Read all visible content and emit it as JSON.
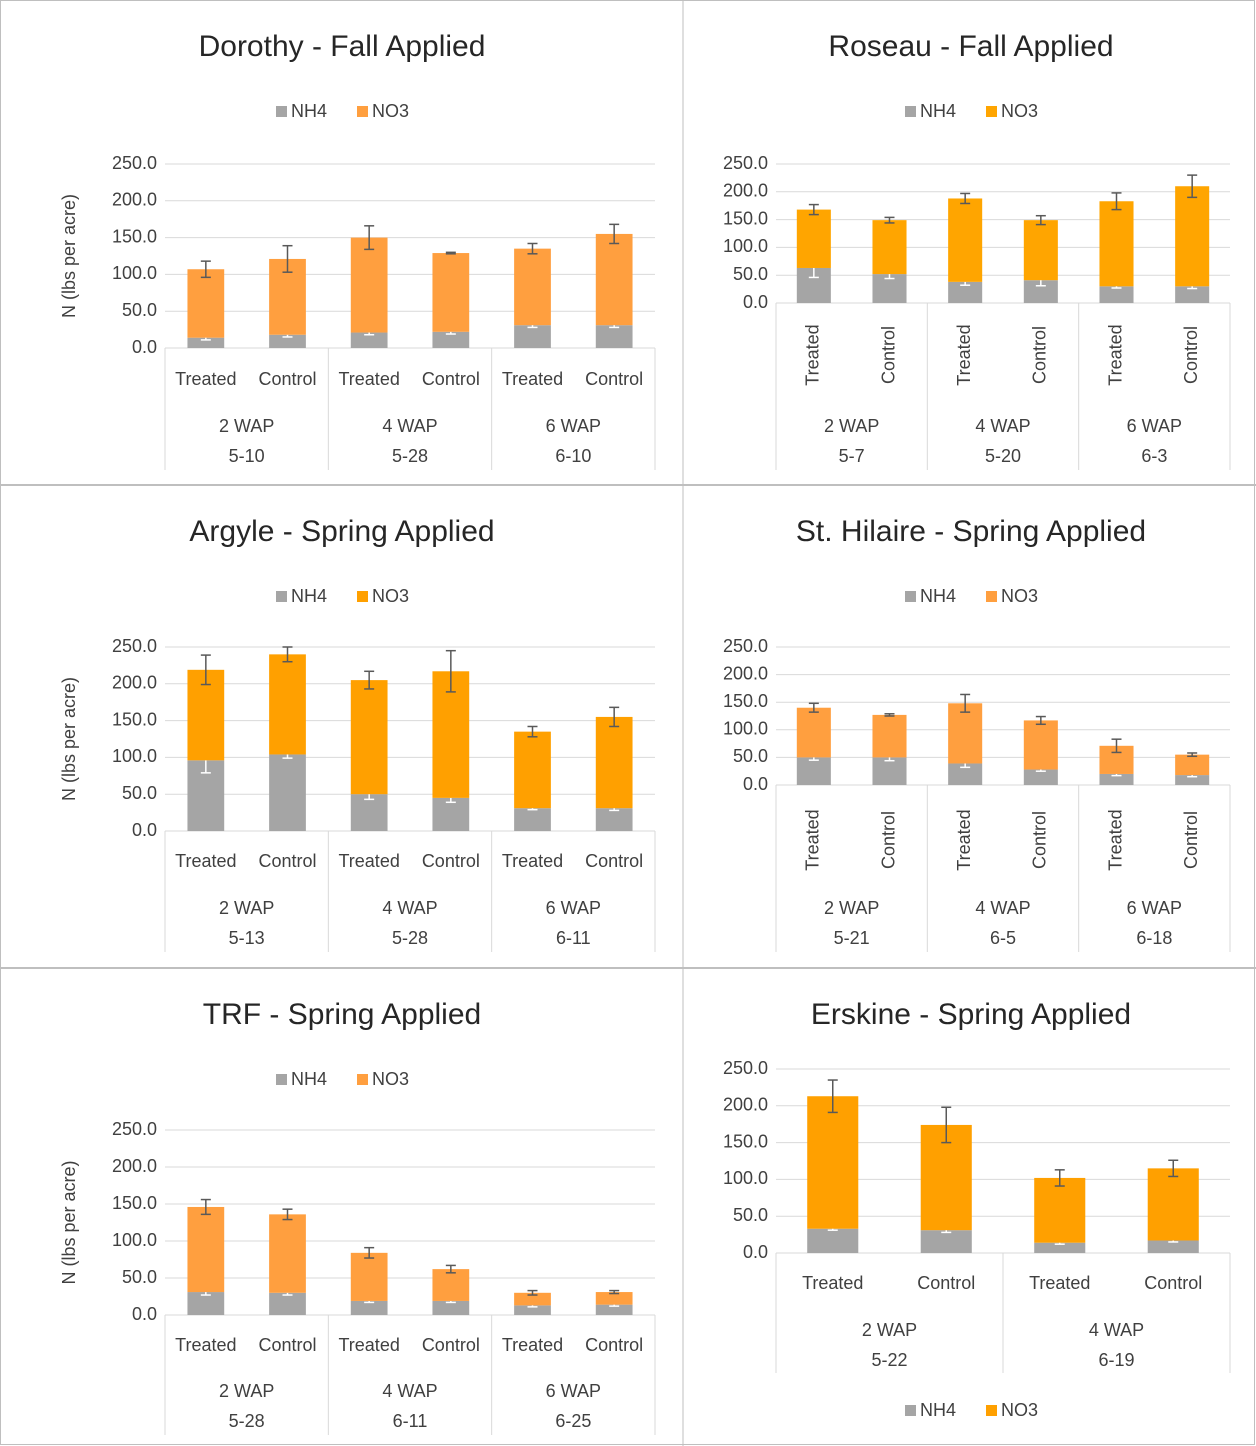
{
  "chart_data": [
    {
      "type": "bar",
      "stacked": true,
      "title": "Dorothy - Fall Applied",
      "ylabel": "N (lbs per acre)",
      "legend": "top",
      "categories": [
        "Treated",
        "Control",
        "Treated",
        "Control",
        "Treated",
        "Control"
      ],
      "groups": [
        [
          "2 WAP",
          "5-10"
        ],
        [
          "4 WAP",
          "5-28"
        ],
        [
          "6 WAP",
          "6-10"
        ]
      ],
      "ylim": [
        0,
        250
      ],
      "yticks": [
        {
          "value": 0,
          "label": "0.0"
        },
        {
          "value": 50,
          "label": "50.0"
        },
        {
          "value": 100,
          "label": "100.0"
        },
        {
          "value": 150,
          "label": "150.0"
        },
        {
          "value": 200,
          "label": "200.0"
        },
        {
          "value": 250,
          "label": "250.0"
        }
      ],
      "grid": true,
      "series": [
        {
          "name": "NH4",
          "color": "#a5a5a5",
          "values": [
            14,
            18,
            21,
            22,
            31,
            31
          ],
          "errors": [
            3,
            3,
            3,
            3,
            3,
            3
          ]
        },
        {
          "name": "NO3",
          "color": "#ff9f3f",
          "values": [
            93,
            103,
            129,
            107,
            104,
            124
          ],
          "errors": [
            11,
            18,
            16,
            1,
            7,
            13
          ]
        }
      ]
    },
    {
      "type": "bar",
      "stacked": true,
      "title": "Roseau - Fall Applied",
      "legend": "top",
      "categories": [
        "Treated",
        "Control",
        "Treated",
        "Control",
        "Treated",
        "Control"
      ],
      "groups": [
        [
          "2 WAP",
          "5-7"
        ],
        [
          "4 WAP",
          "5-20"
        ],
        [
          "6 WAP",
          "6-3"
        ]
      ],
      "ylim": [
        0,
        250
      ],
      "yticks": [
        {
          "value": 0,
          "label": "0.0"
        },
        {
          "value": 50,
          "label": "50.0"
        },
        {
          "value": 100,
          "label": "100.0"
        },
        {
          "value": 150,
          "label": "150.0"
        },
        {
          "value": 200,
          "label": "200.0"
        },
        {
          "value": 250,
          "label": "250.0"
        }
      ],
      "grid": true,
      "series": [
        {
          "name": "NH4",
          "color": "#a5a5a5",
          "values": [
            63,
            52,
            38,
            41,
            30,
            30
          ],
          "errors": [
            17,
            8,
            6,
            10,
            3,
            4
          ]
        },
        {
          "name": "NO3",
          "color": "#ffa500",
          "values": [
            105,
            97,
            150,
            108,
            153,
            180
          ],
          "errors": [
            9,
            5,
            9,
            8,
            15,
            20
          ]
        }
      ]
    },
    {
      "type": "bar",
      "stacked": true,
      "title": "Argyle - Spring Applied",
      "ylabel": "N (lbs per acre)",
      "legend": "top",
      "categories": [
        "Treated",
        "Control",
        "Treated",
        "Control",
        "Treated",
        "Control"
      ],
      "groups": [
        [
          "2 WAP",
          "5-13"
        ],
        [
          "4 WAP",
          "5-28"
        ],
        [
          "6 WAP",
          "6-11"
        ]
      ],
      "ylim": [
        0,
        250
      ],
      "yticks": [
        {
          "value": 0,
          "label": "0.0"
        },
        {
          "value": 50,
          "label": "50.0"
        },
        {
          "value": 100,
          "label": "100.0"
        },
        {
          "value": 150,
          "label": "150.0"
        },
        {
          "value": 200,
          "label": "200.0"
        },
        {
          "value": 250,
          "label": "250.0"
        }
      ],
      "grid": true,
      "series": [
        {
          "name": "NH4",
          "color": "#a5a5a5",
          "values": [
            96,
            104,
            50,
            45,
            31,
            31
          ],
          "errors": [
            17,
            5,
            7,
            6,
            2,
            3
          ]
        },
        {
          "name": "NO3",
          "color": "#ffa000",
          "values": [
            123,
            136,
            155,
            172,
            104,
            124
          ],
          "errors": [
            20,
            10,
            12,
            28,
            7,
            13
          ]
        }
      ]
    },
    {
      "type": "bar",
      "stacked": true,
      "title": "St. Hilaire - Spring Applied",
      "legend": "top",
      "categories": [
        "Treated",
        "Control",
        "Treated",
        "Control",
        "Treated",
        "Control"
      ],
      "groups": [
        [
          "2 WAP",
          "5-21"
        ],
        [
          "4 WAP",
          "6-5"
        ],
        [
          "6 WAP",
          "6-18"
        ]
      ],
      "ylim": [
        0,
        250
      ],
      "yticks": [
        {
          "value": 0,
          "label": "0.0"
        },
        {
          "value": 50,
          "label": "50.0"
        },
        {
          "value": 100,
          "label": "100.0"
        },
        {
          "value": 150,
          "label": "150.0"
        },
        {
          "value": 200,
          "label": "200.0"
        },
        {
          "value": 250,
          "label": "250.0"
        }
      ],
      "grid": true,
      "series": [
        {
          "name": "NH4",
          "color": "#a5a5a5",
          "values": [
            50,
            50,
            39,
            28,
            20,
            18
          ],
          "errors": [
            5,
            6,
            7,
            3,
            3,
            3
          ]
        },
        {
          "name": "NO3",
          "color": "#ff9f3f",
          "values": [
            90,
            77,
            109,
            89,
            51,
            37
          ],
          "errors": [
            8,
            2,
            16,
            7,
            12,
            3
          ]
        }
      ]
    },
    {
      "type": "bar",
      "stacked": true,
      "title": "TRF - Spring Applied",
      "ylabel": "N (lbs per acre)",
      "legend": "top",
      "categories": [
        "Treated",
        "Control",
        "Treated",
        "Control",
        "Treated",
        "Control"
      ],
      "groups": [
        [
          "2 WAP",
          "5-28"
        ],
        [
          "4 WAP",
          "6-11"
        ],
        [
          "6 WAP",
          "6-25"
        ]
      ],
      "ylim": [
        0,
        250
      ],
      "yticks": [
        {
          "value": 0,
          "label": "0.0"
        },
        {
          "value": 50,
          "label": "50.0"
        },
        {
          "value": 100,
          "label": "100.0"
        },
        {
          "value": 150,
          "label": "150.0"
        },
        {
          "value": 200,
          "label": "200.0"
        },
        {
          "value": 250,
          "label": "250.0"
        }
      ],
      "grid": true,
      "series": [
        {
          "name": "NH4",
          "color": "#a5a5a5",
          "values": [
            31,
            30,
            19,
            19,
            13,
            14
          ],
          "errors": [
            4,
            3,
            2,
            2,
            2,
            2
          ]
        },
        {
          "name": "NO3",
          "color": "#ff9f3f",
          "values": [
            115,
            106,
            65,
            43,
            17,
            17
          ],
          "errors": [
            10,
            7,
            7,
            5,
            3,
            2
          ]
        }
      ]
    },
    {
      "type": "bar",
      "stacked": true,
      "title": "Erskine - Spring Applied",
      "legend": "bottom",
      "categories": [
        "Treated",
        "Control",
        "Treated",
        "Control"
      ],
      "groups": [
        [
          "2 WAP",
          "5-22"
        ],
        [
          "4 WAP",
          "6-19"
        ]
      ],
      "ylim": [
        0,
        250
      ],
      "yticks": [
        {
          "value": 0,
          "label": "0.0"
        },
        {
          "value": 50,
          "label": "50.0"
        },
        {
          "value": 100,
          "label": "100.0"
        },
        {
          "value": 150,
          "label": "150.0"
        },
        {
          "value": 200,
          "label": "200.0"
        },
        {
          "value": 250,
          "label": "250.0"
        }
      ],
      "grid": true,
      "series": [
        {
          "name": "NH4",
          "color": "#a5a5a5",
          "values": [
            33,
            31,
            14,
            17
          ],
          "errors": [
            2,
            3,
            2,
            2
          ]
        },
        {
          "name": "NO3",
          "color": "#ffa000",
          "values": [
            180,
            143,
            88,
            98
          ],
          "errors": [
            22,
            24,
            11,
            11
          ]
        }
      ]
    }
  ]
}
